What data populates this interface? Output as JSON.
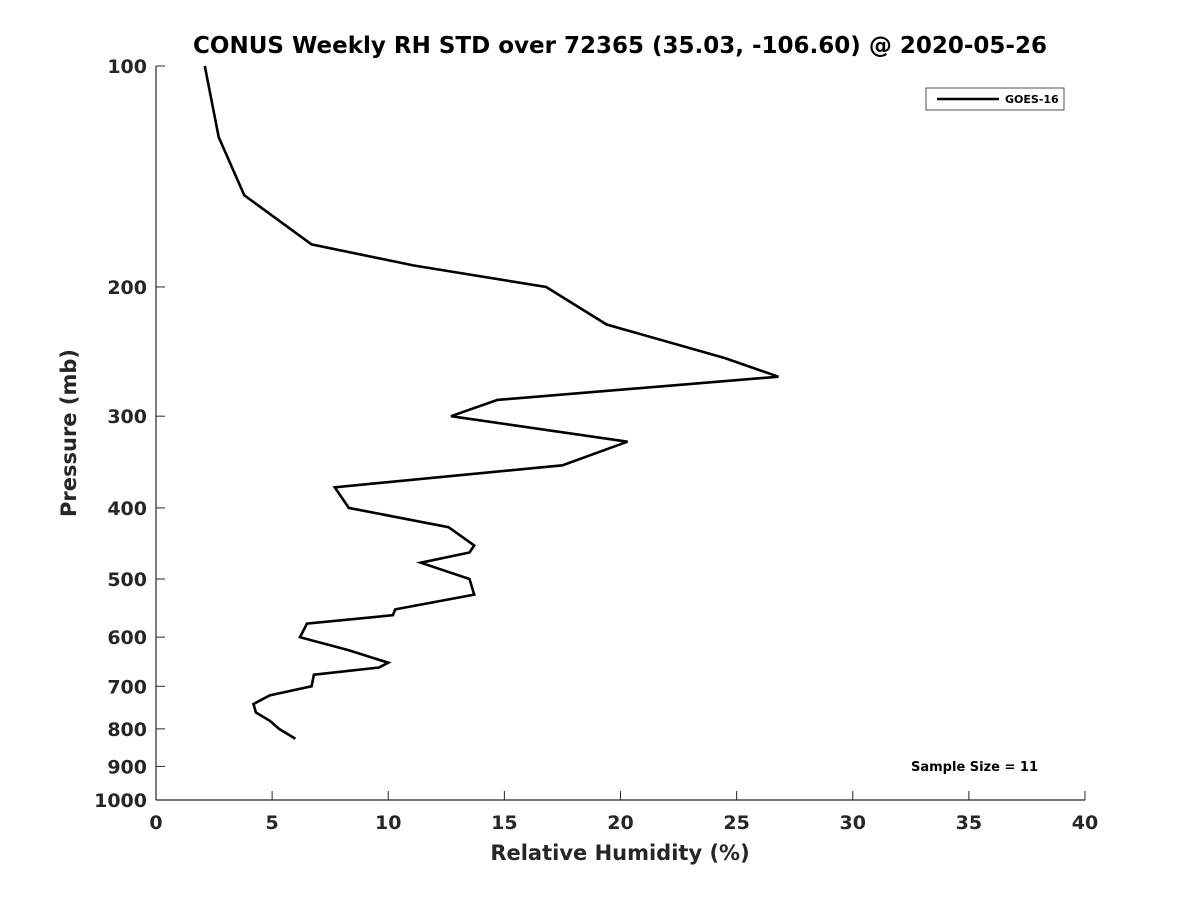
{
  "chart_data": {
    "type": "line",
    "title": "CONUS Weekly RH STD over 72365 (35.03, -106.60) @ 2020-05-26",
    "xlabel": "Relative Humidity (%)",
    "ylabel": "Pressure (mb)",
    "xlim": [
      0,
      40
    ],
    "ylim": [
      100,
      1000
    ],
    "yscale": "log",
    "yreversed": true,
    "xticks": [
      0,
      5,
      10,
      15,
      20,
      25,
      30,
      35,
      40
    ],
    "yticks": [
      100,
      200,
      300,
      400,
      500,
      600,
      700,
      800,
      900,
      1000
    ],
    "grid": false,
    "legend_position": "top-right",
    "annotation": "Sample Size = 11",
    "series": [
      {
        "name": "GOES-16",
        "color": "#000000",
        "points": [
          {
            "x": 2.1,
            "p": 100
          },
          {
            "x": 2.7,
            "p": 125
          },
          {
            "x": 3.8,
            "p": 150
          },
          {
            "x": 6.7,
            "p": 175
          },
          {
            "x": 11.1,
            "p": 187
          },
          {
            "x": 16.8,
            "p": 200
          },
          {
            "x": 19.4,
            "p": 225
          },
          {
            "x": 24.5,
            "p": 250
          },
          {
            "x": 26.8,
            "p": 265
          },
          {
            "x": 14.7,
            "p": 285
          },
          {
            "x": 12.7,
            "p": 300
          },
          {
            "x": 20.3,
            "p": 325
          },
          {
            "x": 17.5,
            "p": 350
          },
          {
            "x": 7.7,
            "p": 375
          },
          {
            "x": 8.3,
            "p": 400
          },
          {
            "x": 12.6,
            "p": 425
          },
          {
            "x": 13.7,
            "p": 450
          },
          {
            "x": 13.5,
            "p": 460
          },
          {
            "x": 11.4,
            "p": 475
          },
          {
            "x": 13.5,
            "p": 500
          },
          {
            "x": 13.7,
            "p": 525
          },
          {
            "x": 10.3,
            "p": 550
          },
          {
            "x": 10.2,
            "p": 560
          },
          {
            "x": 6.5,
            "p": 575
          },
          {
            "x": 6.2,
            "p": 600
          },
          {
            "x": 8.3,
            "p": 625
          },
          {
            "x": 10.0,
            "p": 650
          },
          {
            "x": 9.6,
            "p": 660
          },
          {
            "x": 6.8,
            "p": 675
          },
          {
            "x": 6.7,
            "p": 700
          },
          {
            "x": 4.9,
            "p": 720
          },
          {
            "x": 4.2,
            "p": 740
          },
          {
            "x": 4.3,
            "p": 760
          },
          {
            "x": 4.9,
            "p": 780
          },
          {
            "x": 5.3,
            "p": 800
          },
          {
            "x": 6.0,
            "p": 825
          }
        ]
      }
    ]
  }
}
